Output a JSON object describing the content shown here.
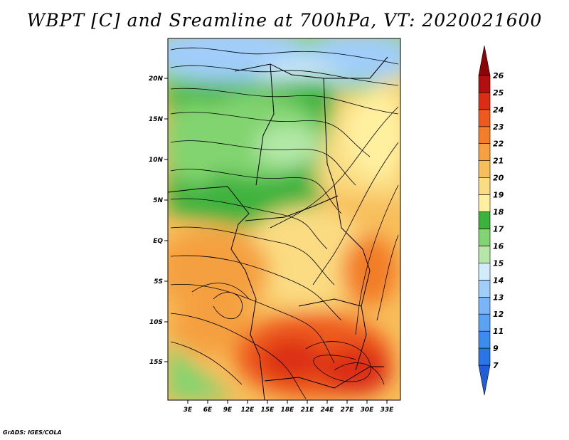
{
  "title": "WBPT [C] and Sreamline at 700hPa, VT: 2020021600",
  "credit": "GrADS: IGES/COLA",
  "map": {
    "variable": "Wet-bulb potential temperature",
    "units": "C",
    "level": "700hPa",
    "valid_time": "2020021600",
    "lon_ticks": [
      "3E",
      "6E",
      "9E",
      "12E",
      "15E",
      "18E",
      "21E",
      "24E",
      "27E",
      "30E",
      "33E"
    ],
    "lat_ticks": [
      "20N",
      "15N",
      "10N",
      "5N",
      "EQ",
      "5S",
      "10S",
      "15S"
    ]
  },
  "colorbar": {
    "labels": [
      "7",
      "9",
      "11",
      "12",
      "13",
      "14",
      "15",
      "16",
      "17",
      "18",
      "19",
      "20",
      "21",
      "22",
      "23",
      "24",
      "25",
      "26"
    ],
    "colors": [
      "#1e5fd9",
      "#2a75e6",
      "#3c8cf0",
      "#5aa2f3",
      "#7ab6f7",
      "#a0cdfa",
      "#d2ecfb",
      "#b4e8a8",
      "#82d470",
      "#3cb23c",
      "#fff0a0",
      "#fbdc82",
      "#f8be5c",
      "#f5a041",
      "#f37d28",
      "#ee5a1e",
      "#dc2d14",
      "#b40f0f",
      "#8c0505"
    ]
  }
}
